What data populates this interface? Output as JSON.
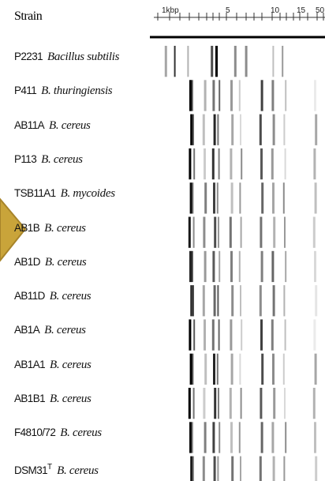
{
  "header": {
    "title": "Strain",
    "scale": [
      "1kbp",
      "5",
      "10",
      "15",
      "50"
    ]
  },
  "rows": [
    {
      "code": "P2231",
      "species": "Bacillus subtilis"
    },
    {
      "code": "P411",
      "species": "B. thuringiensis"
    },
    {
      "code": "AB11A",
      "species": "B. cereus"
    },
    {
      "code": "P113",
      "species": "B. cereus"
    },
    {
      "code": "TSB11A1",
      "species": "B. mycoides"
    },
    {
      "code": "AB1B",
      "species": "B. cereus"
    },
    {
      "code": "AB1D",
      "species": "B. cereus"
    },
    {
      "code": "AB11D",
      "species": "B. cereus"
    },
    {
      "code": "AB1A",
      "species": "B. cereus"
    },
    {
      "code": "AB1A1",
      "species": "B. cereus"
    },
    {
      "code": "AB1B1",
      "species": "B. cereus"
    },
    {
      "code": "F4810/72",
      "species": "B. cereus"
    },
    {
      "code": "DSM31",
      "superscript": "T",
      "species": "B. cereus"
    }
  ]
}
